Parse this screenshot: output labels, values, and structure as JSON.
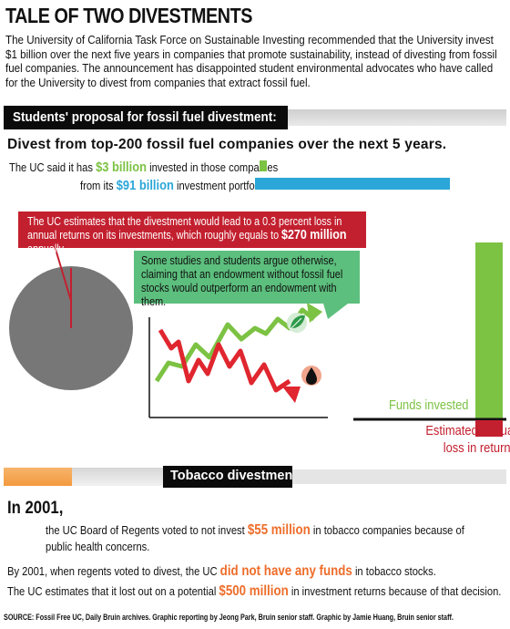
{
  "title": "TALE OF TWO DIVESTMENTS",
  "intro": "The University of California Task Force on Sustainable Investing recommended that the University invest $1 billion over the next five years in companies that promote sustainability, instead of divesting from fossil fuel companies. The announcement has disappointed student environmental advocates who have called for the University to divest from companies that extract fossil fuel.",
  "section1": "Students' proposal for fossil fuel divestment:",
  "divest_head": "Divest from top-200 fossil fuel companies over the next 5 years.",
  "uc_line1": {
    "pre": "The UC said it has ",
    "amount": "$3 billion",
    "post": " invested in those companies"
  },
  "uc_line2": {
    "pre": "from its ",
    "amount": "$91 billion",
    "post": " investment portfolio"
  },
  "red_box": {
    "pre": "The UC estimates that the divestment would lead to a 0.3 percent loss in annual returns on its investments, which roughly equals to ",
    "amount": "$270 million",
    "post": " annually."
  },
  "green_box": "Some studies and students argue otherwise, claiming that an endowment without fossil fuel stocks would outperform an endowment with them.",
  "funds_label": "Funds invested",
  "loss_label": {
    "line1": "Estimated annual",
    "line2": "loss in returns"
  },
  "section2": "Tobacco divestment",
  "in2001": "In 2001,",
  "tob1": {
    "pre": "the UC Board of Regents voted to not invest ",
    "amount": "$55 million",
    "post": " in tobacco companies because of public health concerns."
  },
  "tob2": {
    "pre": "By 2001, when regents voted to divest, the UC ",
    "amount": "did not have any funds",
    "post": " in tobacco stocks."
  },
  "tob3": {
    "pre": "The UC estimates that it lost out on a potential ",
    "amount": "$500 million",
    "post": " in investment returns because of that decision."
  },
  "source": "SOURCE:  Fossil Free UC, Daily Bruin archives. Graphic reporting by Jeong Park, Bruin senior staff. Graphic by Jamie Huang, Bruin senior staff.",
  "colors": {
    "green": "#7cc243",
    "blue": "#2ba6d8",
    "red": "#c3202f",
    "orange": "#ee6d2a",
    "mint": "#5cbf7d",
    "grey_pie": "#777777"
  },
  "icons": [
    "leaf-icon",
    "oil-drop-icon"
  ],
  "chart_data": {
    "type": "bar",
    "categories": [
      "Funds invested",
      "Estimated annual loss in returns"
    ],
    "values": [
      3000,
      270
    ],
    "pie": {
      "total": 91,
      "slice": 3
    }
  }
}
